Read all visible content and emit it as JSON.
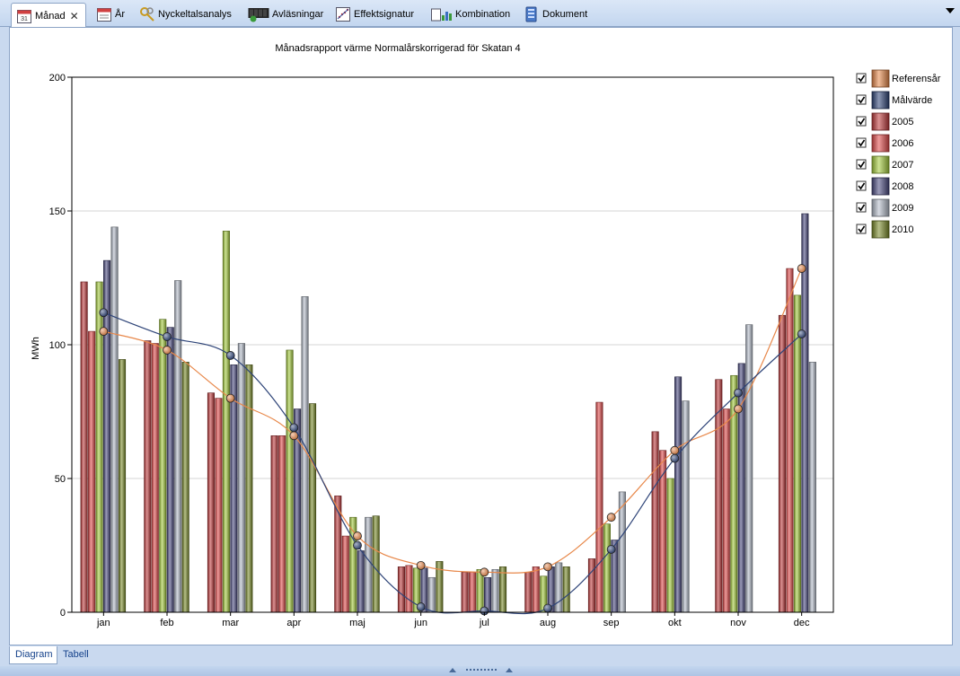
{
  "tabs": [
    {
      "label": "Månad",
      "icon": "calendar-month-icon",
      "active": true,
      "closable": true
    },
    {
      "label": "År",
      "icon": "calendar-year-icon",
      "active": false,
      "closable": false
    },
    {
      "label": "Nyckeltalsanalys",
      "icon": "key-analysis-icon",
      "active": false,
      "closable": false
    },
    {
      "label": "Avläsningar",
      "icon": "meter-reading-icon",
      "active": false,
      "closable": false
    },
    {
      "label": "Effektsignatur",
      "icon": "power-signature-icon",
      "active": false,
      "closable": false
    },
    {
      "label": "Kombination",
      "icon": "combination-icon",
      "active": false,
      "closable": false
    },
    {
      "label": "Dokument",
      "icon": "document-icon",
      "active": false,
      "closable": false
    }
  ],
  "tab_close_glyph": "✕",
  "bottom_tabs": [
    {
      "label": "Diagram",
      "active": true
    },
    {
      "label": "Tabell",
      "active": false
    }
  ],
  "chart_data": {
    "type": "bar",
    "title": "Månadsrapport värme Normalårskorrigerad för Skatan 4",
    "xlabel": "",
    "ylabel": "MWh",
    "ylim": [
      0,
      200
    ],
    "yticks": [
      0,
      50,
      100,
      150,
      200
    ],
    "grid": true,
    "legend_position": "right",
    "categories": [
      "jan",
      "feb",
      "mar",
      "apr",
      "maj",
      "jun",
      "jul",
      "aug",
      "sep",
      "okt",
      "nov",
      "dec"
    ],
    "series": [
      {
        "name": "2005",
        "type": "bar",
        "color": "#c0393b",
        "values": [
          123.5,
          101.5,
          82,
          66,
          43.5,
          17,
          15,
          15,
          20,
          67.5,
          87,
          111
        ]
      },
      {
        "name": "2006",
        "type": "bar",
        "color": "#e24a4a",
        "values": [
          105,
          100.5,
          80,
          66,
          28.5,
          17.5,
          15,
          17,
          78.5,
          60.5,
          76,
          128.5
        ]
      },
      {
        "name": "2007",
        "type": "bar",
        "color": "#a4cc3a",
        "values": [
          123.5,
          109.5,
          142.5,
          98,
          35.5,
          16.5,
          16,
          13.5,
          33,
          50,
          88.5,
          118.5
        ]
      },
      {
        "name": "2008",
        "type": "bar",
        "color": "#4a4a80",
        "values": [
          131.5,
          106.5,
          92.5,
          76,
          23,
          16.5,
          13,
          17,
          27,
          88,
          93,
          149
        ]
      },
      {
        "name": "2009",
        "type": "bar",
        "color": "#b4bcca",
        "values": [
          144,
          124,
          100.5,
          118,
          35.5,
          13,
          16,
          18.5,
          45,
          79,
          107.5,
          93.5
        ]
      },
      {
        "name": "2010",
        "type": "bar",
        "color": "#7a8a28",
        "values": [
          94.5,
          93.5,
          92.5,
          78,
          36,
          19,
          17,
          17,
          null,
          null,
          null,
          null
        ]
      },
      {
        "name": "Referensår",
        "type": "line",
        "color": "#e8884a",
        "values": [
          105,
          98,
          80,
          66,
          28.5,
          17.5,
          15,
          17,
          35.5,
          60.5,
          76,
          128.5
        ]
      },
      {
        "name": "Målvärde",
        "type": "line",
        "color": "#2e4478",
        "values": [
          112,
          103,
          96,
          69,
          25,
          2,
          0.5,
          1.5,
          23.5,
          57.5,
          82,
          104
        ]
      }
    ],
    "legend": [
      "Referensår",
      "Målvärde",
      "2005",
      "2006",
      "2007",
      "2008",
      "2009",
      "2010"
    ]
  }
}
